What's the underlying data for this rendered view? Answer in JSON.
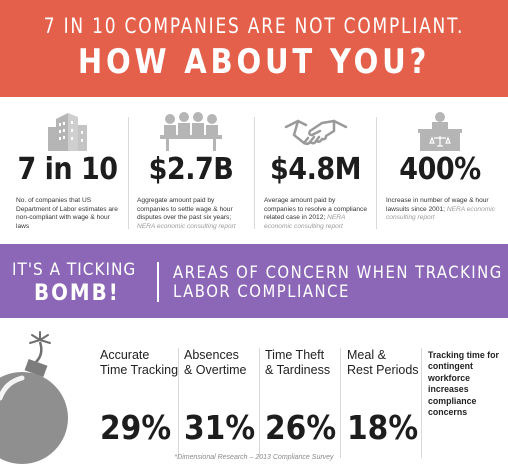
{
  "header": {
    "line1": "7 IN 10 COMPANIES ARE NOT COMPLIANT.",
    "line2": "HOW ABOUT YOU?"
  },
  "stats": [
    {
      "icon": "buildings-icon",
      "value": "7 in 10",
      "text": "No. of companies that US Department of Labor estimates are non-compliant with wage & hour laws",
      "cite": ""
    },
    {
      "icon": "meeting-table-icon",
      "value": "$2.7B",
      "text": "Aggregate amount paid by companies to settle wage & hour disputes over the past six years;",
      "cite": "NERA economic consulting report"
    },
    {
      "icon": "handshake-icon",
      "value": "$4.8M",
      "text": "Average amount paid by companies to resolve a compliance related case in 2012;",
      "cite": "NERA economic consulting report"
    },
    {
      "icon": "court-judge-icon",
      "value": "400%",
      "text": "Increase in number of wage & hour lawsuits since 2001;",
      "cite": "NERA economic consulting report"
    }
  ],
  "band": {
    "ticking_line1": "IT'S A TICKING",
    "ticking_line2": "BOMB!",
    "concern_line1": "AREAS OF CONCERN WHEN TRACKING",
    "concern_line2": "LABOR COMPLIANCE"
  },
  "concerns": [
    {
      "label_line1": "Accurate",
      "label_line2": "Time Tracking",
      "percent": "29%"
    },
    {
      "label_line1": "Absences",
      "label_line2": "& Overtime",
      "percent": "31%"
    },
    {
      "label_line1": "Time Theft",
      "label_line2": "& Tardiness",
      "percent": "26%"
    },
    {
      "label_line1": "Meal &",
      "label_line2": "Rest Periods",
      "percent": "18%"
    }
  ],
  "note": "Tracking time for contingent workforce increases compliance concerns",
  "footnote": "*Dimensional Research – 2013 Compliance Survey",
  "colors": {
    "header_bg": "#e4604a",
    "band_bg": "#8c67b7",
    "icon_gray": "#b5b5b5",
    "bomb_gray": "#8f8f8f"
  }
}
